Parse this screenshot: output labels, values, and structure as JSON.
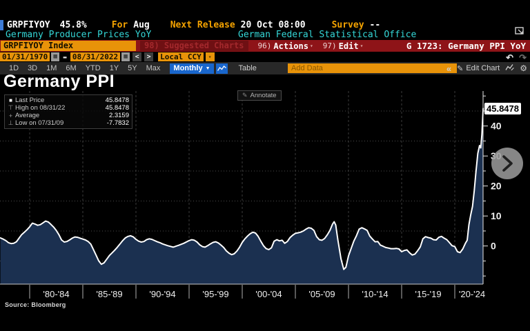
{
  "header": {
    "ticker": "GRPFIYOY",
    "value": "45.8%",
    "for_label": "For",
    "for_value": "Aug",
    "next_release_label": "Next Release",
    "next_release_value": "20 Oct 08:00",
    "survey_label": "Survey",
    "survey_value": "--",
    "description": "Germany Producer Prices YoY",
    "source_org": "German Federal Statistical Office"
  },
  "menu_bar": {
    "security_field": "GRPFIYOY Index",
    "suggested_charts": "98) Suggested Charts",
    "actions_num": "96)",
    "actions_label": "Actions",
    "edit_num": "97)",
    "edit_label": "Edit",
    "chart_id_title": "G 1723: Germany PPI YoY"
  },
  "range_bar": {
    "start_date": "01/31/1970",
    "end_date": "08/31/2022",
    "date_separator": "-",
    "currency": "Local CCY"
  },
  "toolbar": {
    "periods": [
      "1D",
      "3D",
      "1M",
      "6M",
      "YTD",
      "1Y",
      "5Y",
      "Max"
    ],
    "frequency": "Monthly",
    "table_label": "Table",
    "add_data_placeholder": "Add Data",
    "edit_chart_label": "Edit Chart"
  },
  "icons": {
    "undo": "↶",
    "redo": "↷",
    "calendar": "▦",
    "dropdown_caret": "▼",
    "small_caret": "▾",
    "prev_arrow": "<",
    "next_arrow": ">",
    "collapse": "«",
    "pencil": "✎",
    "gear": "⚙",
    "legend_square": "■",
    "legend_high": "⊤",
    "legend_avg": "+",
    "legend_low": "⊥"
  },
  "chart": {
    "title": "Germany PPI",
    "annotate_label": "Annotate",
    "last_price_badge": "45.8478",
    "legend": [
      {
        "label": "Last Price",
        "value": "45.8478"
      },
      {
        "label": "High on 08/31/22",
        "value": "45.8478"
      },
      {
        "label": "Average",
        "value": "2.3159"
      },
      {
        "label": "Low on 07/31/09",
        "value": "-7.7832"
      }
    ],
    "source": "Source: Bloomberg"
  },
  "chart_data": {
    "type": "area",
    "title": "Germany PPI",
    "series_name": "Germany Producer Prices YoY (GRPFIYOY Index)",
    "x_unit": "decimal_year",
    "x_visible_range": [
      1977.25,
      2022.67
    ],
    "ylim": [
      -12.7,
      51.7
    ],
    "y_ticks_labeled": [
      0,
      10,
      20,
      30,
      40
    ],
    "y_gridlines": [
      -5,
      5,
      15,
      25,
      35,
      45
    ],
    "x_gridline_years": [
      1980,
      1985,
      1990,
      1995,
      2000,
      2005,
      2010,
      2015,
      2020
    ],
    "x_tick_labels": [
      "'80-'84",
      "'85-'89",
      "'90-'94",
      "'95-'99",
      "'00-'04",
      "'05-'09",
      "'10-'14",
      "'15-'19",
      "'20-'24"
    ],
    "line_color": "#ffffff",
    "fill_color": "#1b3050",
    "grid_on": true,
    "legend_position": "top-left",
    "points": [
      [
        1977.25,
        2.7
      ],
      [
        1977.5,
        2.3
      ],
      [
        1977.75,
        1.8
      ],
      [
        1978,
        1.1
      ],
      [
        1978.25,
        0.8
      ],
      [
        1978.5,
        0.9
      ],
      [
        1978.75,
        1.4
      ],
      [
        1979,
        2.6
      ],
      [
        1979.25,
        3.8
      ],
      [
        1979.5,
        4.6
      ],
      [
        1979.75,
        5.4
      ],
      [
        1980,
        6.4
      ],
      [
        1980.25,
        7.6
      ],
      [
        1980.5,
        7.3
      ],
      [
        1980.75,
        6.9
      ],
      [
        1981,
        7.1
      ],
      [
        1981.25,
        7.7
      ],
      [
        1981.5,
        8.3
      ],
      [
        1981.75,
        8.0
      ],
      [
        1982,
        7.2
      ],
      [
        1982.25,
        6.3
      ],
      [
        1982.5,
        5.2
      ],
      [
        1982.75,
        3.8
      ],
      [
        1983,
        2.0
      ],
      [
        1983.25,
        1.3
      ],
      [
        1983.5,
        1.5
      ],
      [
        1983.75,
        2.0
      ],
      [
        1984,
        2.6
      ],
      [
        1984.25,
        3.0
      ],
      [
        1984.5,
        2.9
      ],
      [
        1984.75,
        2.6
      ],
      [
        1985,
        2.3
      ],
      [
        1985.25,
        2.0
      ],
      [
        1985.5,
        1.5
      ],
      [
        1985.75,
        0.6
      ],
      [
        1986,
        -1.2
      ],
      [
        1986.25,
        -3.1
      ],
      [
        1986.5,
        -5.0
      ],
      [
        1986.75,
        -6.1
      ],
      [
        1987,
        -5.6
      ],
      [
        1987.25,
        -4.4
      ],
      [
        1987.5,
        -3.2
      ],
      [
        1987.75,
        -2.3
      ],
      [
        1988,
        -1.4
      ],
      [
        1988.25,
        -0.4
      ],
      [
        1988.5,
        0.7
      ],
      [
        1988.75,
        1.8
      ],
      [
        1989,
        2.7
      ],
      [
        1989.25,
        3.2
      ],
      [
        1989.5,
        3.4
      ],
      [
        1989.75,
        3.0
      ],
      [
        1990,
        2.2
      ],
      [
        1990.25,
        1.6
      ],
      [
        1990.5,
        1.3
      ],
      [
        1990.75,
        1.5
      ],
      [
        1991,
        2.1
      ],
      [
        1991.25,
        2.4
      ],
      [
        1991.5,
        2.2
      ],
      [
        1991.75,
        1.8
      ],
      [
        1992,
        1.4
      ],
      [
        1992.25,
        1.1
      ],
      [
        1992.5,
        0.7
      ],
      [
        1993,
        0.1
      ],
      [
        1993.5,
        -0.4
      ],
      [
        1994,
        0.2
      ],
      [
        1994.5,
        0.9
      ],
      [
        1995,
        1.8
      ],
      [
        1995.25,
        2.1
      ],
      [
        1995.5,
        1.9
      ],
      [
        1995.75,
        1.3
      ],
      [
        1996,
        0.4
      ],
      [
        1996.25,
        -0.2
      ],
      [
        1996.5,
        -0.4
      ],
      [
        1996.75,
        0.1
      ],
      [
        1997,
        0.7
      ],
      [
        1997.25,
        1.2
      ],
      [
        1997.5,
        1.4
      ],
      [
        1997.75,
        1.0
      ],
      [
        1998,
        0.3
      ],
      [
        1998.25,
        -0.5
      ],
      [
        1998.5,
        -1.6
      ],
      [
        1998.75,
        -2.4
      ],
      [
        1999,
        -2.9
      ],
      [
        1999.25,
        -2.6
      ],
      [
        1999.5,
        -1.7
      ],
      [
        1999.75,
        -0.4
      ],
      [
        2000,
        1.2
      ],
      [
        2000.25,
        2.4
      ],
      [
        2000.5,
        3.3
      ],
      [
        2000.75,
        4.1
      ],
      [
        2001,
        4.6
      ],
      [
        2001.25,
        4.3
      ],
      [
        2001.5,
        3.2
      ],
      [
        2001.75,
        1.6
      ],
      [
        2002,
        0.1
      ],
      [
        2002.25,
        -0.9
      ],
      [
        2002.5,
        -1.2
      ],
      [
        2002.75,
        -0.6
      ],
      [
        2003,
        1.6
      ],
      [
        2003.25,
        2.1
      ],
      [
        2003.5,
        1.7
      ],
      [
        2003.75,
        1.9
      ],
      [
        2004,
        0.9
      ],
      [
        2004.25,
        1.5
      ],
      [
        2004.5,
        2.8
      ],
      [
        2004.75,
        3.6
      ],
      [
        2005,
        4.2
      ],
      [
        2005.25,
        4.4
      ],
      [
        2005.5,
        4.6
      ],
      [
        2005.75,
        5.0
      ],
      [
        2006,
        5.6
      ],
      [
        2006.25,
        6.1
      ],
      [
        2006.5,
        5.9
      ],
      [
        2006.75,
        5.2
      ],
      [
        2007,
        3.1
      ],
      [
        2007.25,
        2.1
      ],
      [
        2007.5,
        1.9
      ],
      [
        2007.75,
        2.5
      ],
      [
        2008,
        3.7
      ],
      [
        2008.25,
        5.2
      ],
      [
        2008.5,
        7.3
      ],
      [
        2008.65,
        8.1
      ],
      [
        2008.8,
        7.0
      ],
      [
        2009,
        2.0
      ],
      [
        2009.15,
        -1.2
      ],
      [
        2009.3,
        -4.4
      ],
      [
        2009.55,
        -7.8
      ],
      [
        2009.75,
        -7.1
      ],
      [
        2010,
        -3.3
      ],
      [
        2010.25,
        -0.8
      ],
      [
        2010.5,
        1.6
      ],
      [
        2010.75,
        3.4
      ],
      [
        2011,
        5.6
      ],
      [
        2011.25,
        6.1
      ],
      [
        2011.5,
        5.7
      ],
      [
        2011.75,
        5.2
      ],
      [
        2012,
        3.3
      ],
      [
        2012.25,
        2.3
      ],
      [
        2012.5,
        1.4
      ],
      [
        2012.75,
        1.5
      ],
      [
        2013,
        0.3
      ],
      [
        2013.25,
        -0.1
      ],
      [
        2013.5,
        -0.5
      ],
      [
        2013.75,
        -0.7
      ],
      [
        2014,
        -0.9
      ],
      [
        2014.25,
        -0.9
      ],
      [
        2014.5,
        -0.8
      ],
      [
        2014.75,
        -1.0
      ],
      [
        2015,
        -1.9
      ],
      [
        2015.25,
        -1.5
      ],
      [
        2015.5,
        -1.3
      ],
      [
        2015.75,
        -2.3
      ],
      [
        2016,
        -3.0
      ],
      [
        2016.25,
        -2.7
      ],
      [
        2016.5,
        -1.6
      ],
      [
        2016.75,
        -0.3
      ],
      [
        2017,
        2.4
      ],
      [
        2017.25,
        3.1
      ],
      [
        2017.5,
        2.8
      ],
      [
        2017.75,
        2.6
      ],
      [
        2018,
        2.1
      ],
      [
        2018.25,
        2.0
      ],
      [
        2018.5,
        2.9
      ],
      [
        2018.75,
        3.2
      ],
      [
        2019,
        2.6
      ],
      [
        2019.25,
        2.1
      ],
      [
        2019.5,
        1.1
      ],
      [
        2019.75,
        0.1
      ],
      [
        2020,
        -0.2
      ],
      [
        2020.25,
        -1.9
      ],
      [
        2020.5,
        -2.2
      ],
      [
        2020.75,
        -1.0
      ],
      [
        2021,
        0.9
      ],
      [
        2021.17,
        1.9
      ],
      [
        2021.33,
        7.1
      ],
      [
        2021.5,
        10.4
      ],
      [
        2021.67,
        13.2
      ],
      [
        2021.83,
        18.4
      ],
      [
        2022,
        25.0
      ],
      [
        2022.17,
        30.9
      ],
      [
        2022.33,
        33.5
      ],
      [
        2022.45,
        32.7
      ],
      [
        2022.55,
        37.2
      ],
      [
        2022.67,
        45.85
      ]
    ]
  }
}
